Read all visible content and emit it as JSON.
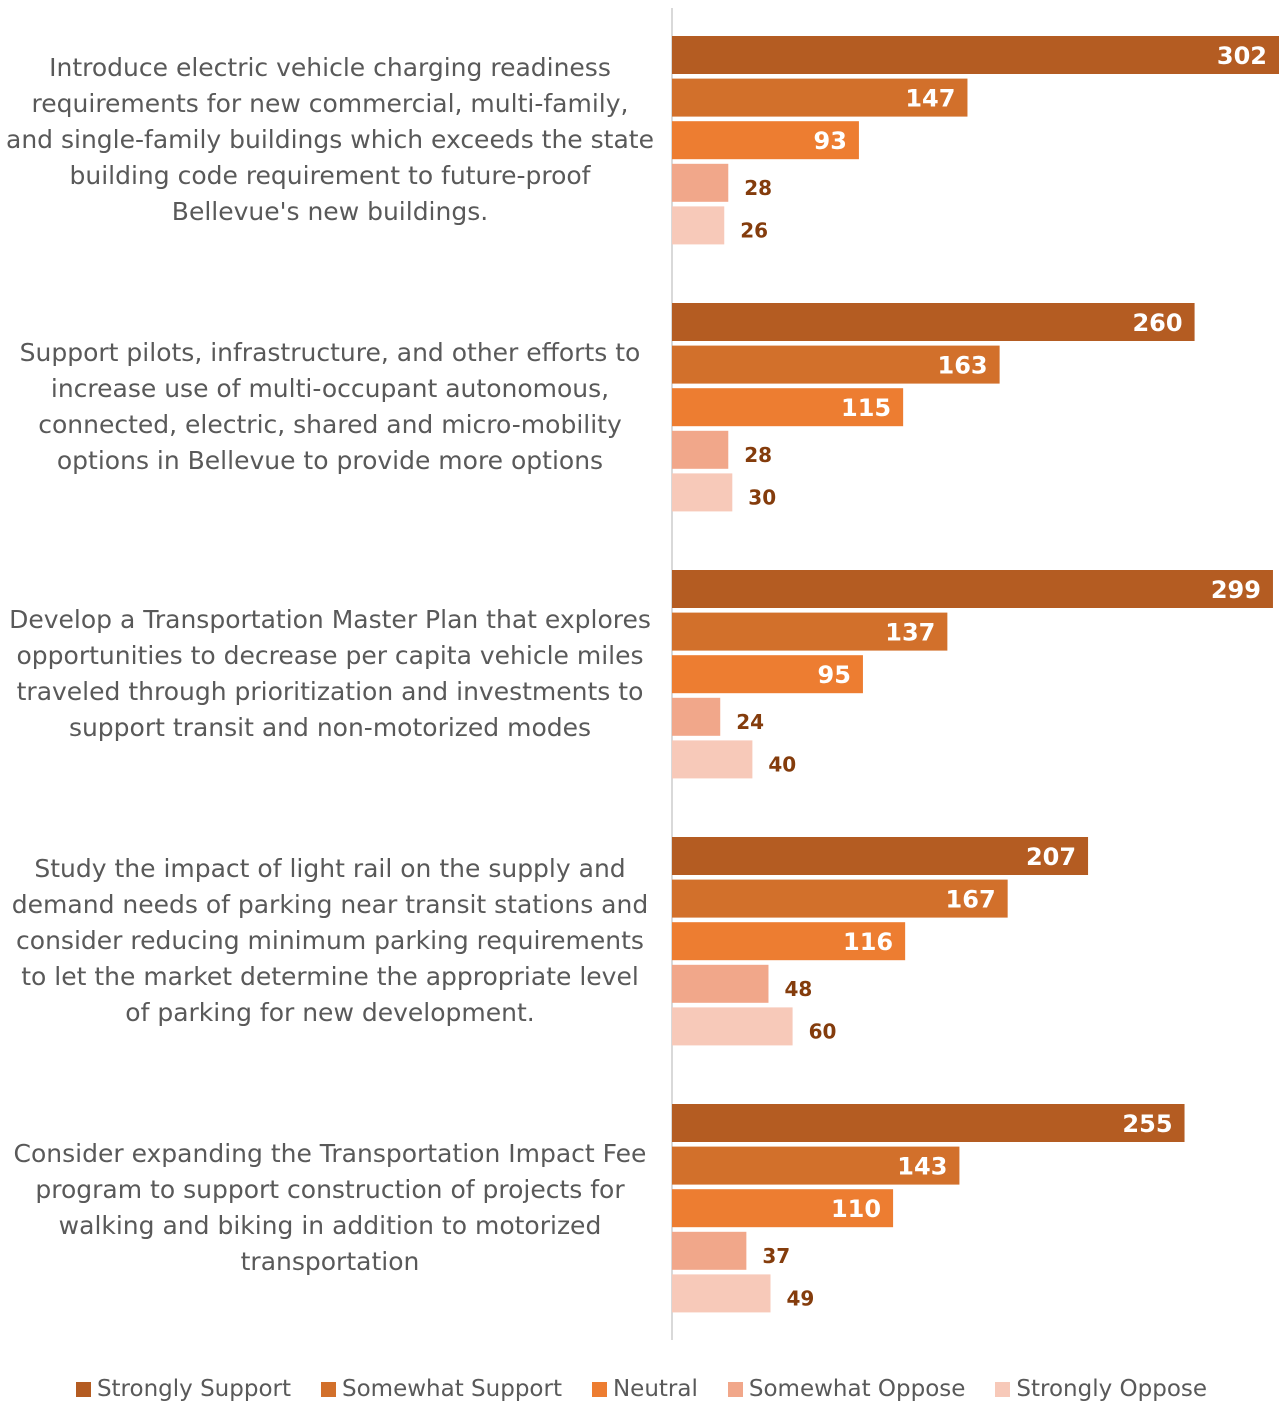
{
  "chart_data": {
    "type": "bar",
    "orientation": "horizontal",
    "categories": [
      "Introduce electric vehicle charging readiness requirements for new commercial, multi-family, and single-family buildings which exceeds the state building code requirement to future-proof Bellevue's new buildings.",
      "Support pilots, infrastructure, and other efforts to increase use of multi-occupant autonomous, connected, electric, shared and micro-mobility options in Bellevue to provide more options",
      "Develop a Transportation Master Plan that explores opportunities to decrease per capita vehicle miles traveled through prioritization and investments to support transit and non-motorized modes",
      "Study the impact of light rail on the supply and demand needs of parking near transit stations and consider reducing minimum parking requirements to let the market determine the appropriate level of parking for new development.",
      "Consider expanding the Transportation Impact Fee program to support construction of projects for walking and biking in addition to motorized transportation"
    ],
    "series": [
      {
        "name": "Strongly Support",
        "color": "#B45C22",
        "values": [
          302,
          260,
          299,
          207,
          255
        ]
      },
      {
        "name": "Somewhat Support",
        "color": "#D2702B",
        "values": [
          147,
          163,
          137,
          167,
          143
        ]
      },
      {
        "name": "Neutral",
        "color": "#ED7D31",
        "values": [
          93,
          115,
          95,
          116,
          110
        ]
      },
      {
        "name": "Somewhat Oppose",
        "color": "#F1A78A",
        "values": [
          28,
          28,
          24,
          48,
          37
        ]
      },
      {
        "name": "Strongly Oppose",
        "color": "#F7C9B9",
        "values": [
          26,
          30,
          40,
          60,
          49
        ]
      }
    ],
    "xlim": [
      0,
      302
    ],
    "data_labels": true,
    "legend_position": "bottom",
    "grid": false,
    "title": "",
    "xlabel": "",
    "ylabel": ""
  }
}
